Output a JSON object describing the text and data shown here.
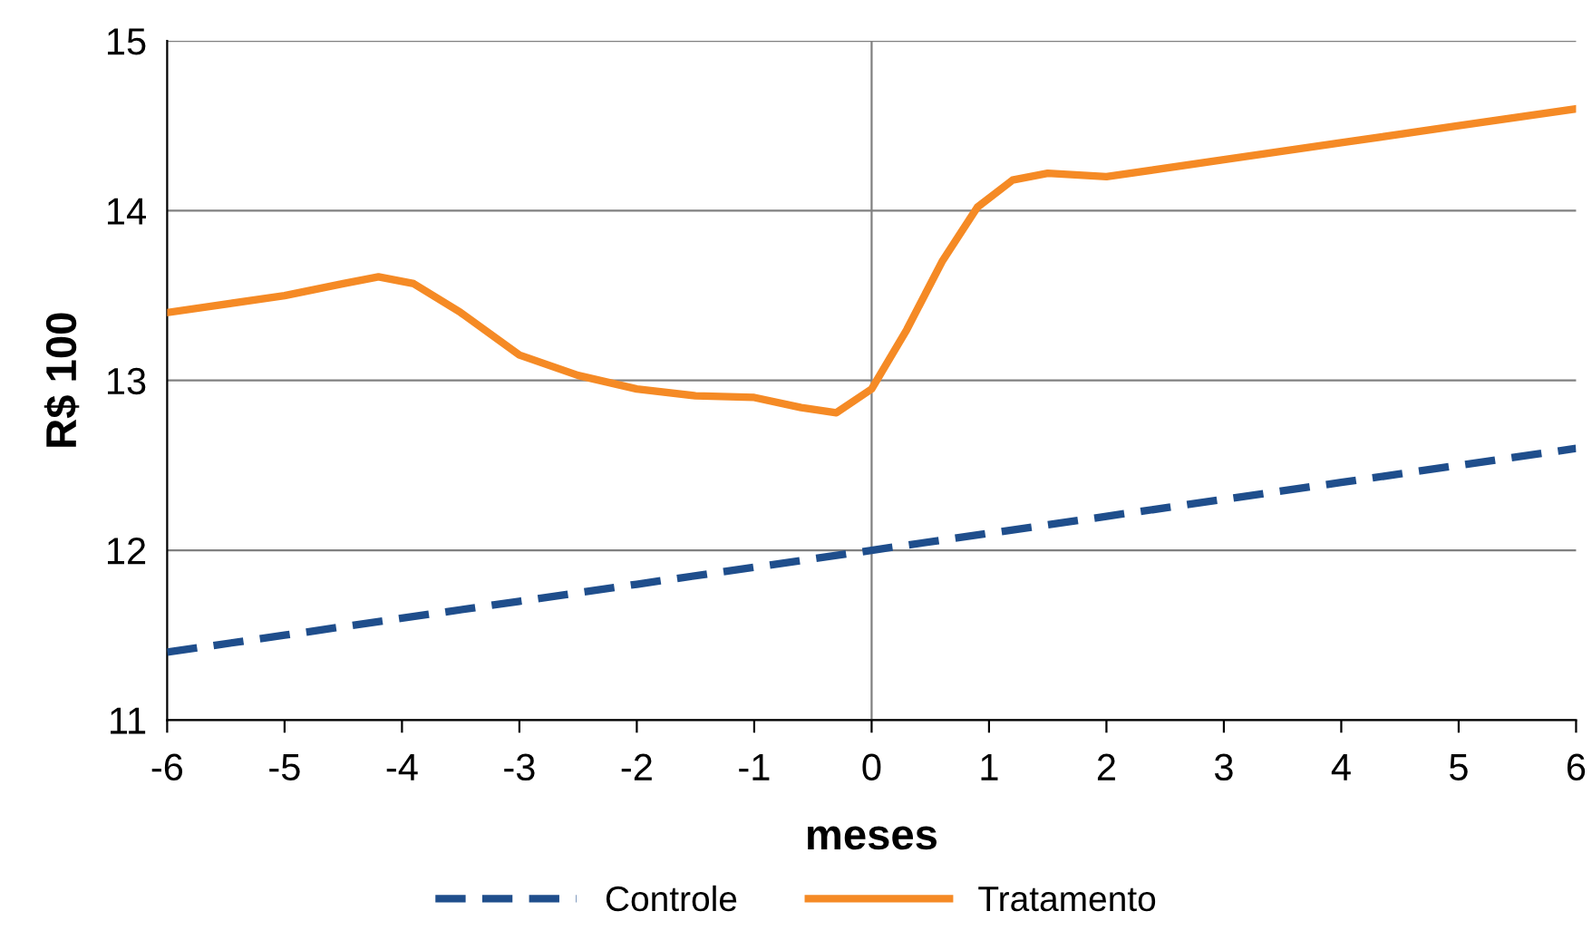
{
  "chart_data": {
    "type": "line",
    "xlabel": "meses",
    "ylabel": "R$ 100",
    "xlim": [
      -6,
      6
    ],
    "xticks": [
      -6,
      -5,
      -4,
      -3,
      -2,
      -1,
      0,
      1,
      2,
      3,
      4,
      5,
      6
    ],
    "ylim": [
      11,
      15
    ],
    "yticks": [
      11,
      12,
      13,
      14,
      15
    ],
    "grid": "y",
    "legend": "bottom",
    "ref_lines": [
      {
        "axis": "x",
        "value": 0,
        "color": "#808080",
        "line_style": "solid"
      }
    ],
    "series": [
      {
        "name": "Controle",
        "color": "#1f4e8c",
        "line_style": "dashed",
        "x": [
          -6,
          -5,
          -4,
          -3,
          -2,
          -1,
          0,
          1,
          2,
          3,
          4,
          5,
          6
        ],
        "values": [
          11.4,
          11.5,
          11.6,
          11.7,
          11.8,
          11.9,
          12.0,
          12.1,
          12.2,
          12.3,
          12.4,
          12.5,
          12.6
        ]
      },
      {
        "name": "Tratamento",
        "color": "#f58a25",
        "line_style": "solid",
        "x": [
          -6,
          -5,
          -4.5,
          -4.2,
          -3.9,
          -3.5,
          -3,
          -2.5,
          -2,
          -1.5,
          -1,
          -0.6,
          -0.3,
          0,
          0.3,
          0.6,
          0.9,
          1.2,
          1.5,
          2,
          3,
          4,
          5,
          6
        ],
        "values": [
          13.4,
          13.5,
          13.57,
          13.61,
          13.57,
          13.4,
          13.15,
          13.03,
          12.95,
          12.91,
          12.9,
          12.84,
          12.81,
          12.95,
          13.3,
          13.7,
          14.02,
          14.18,
          14.22,
          14.2,
          14.3,
          14.4,
          14.5,
          14.6
        ]
      }
    ]
  }
}
